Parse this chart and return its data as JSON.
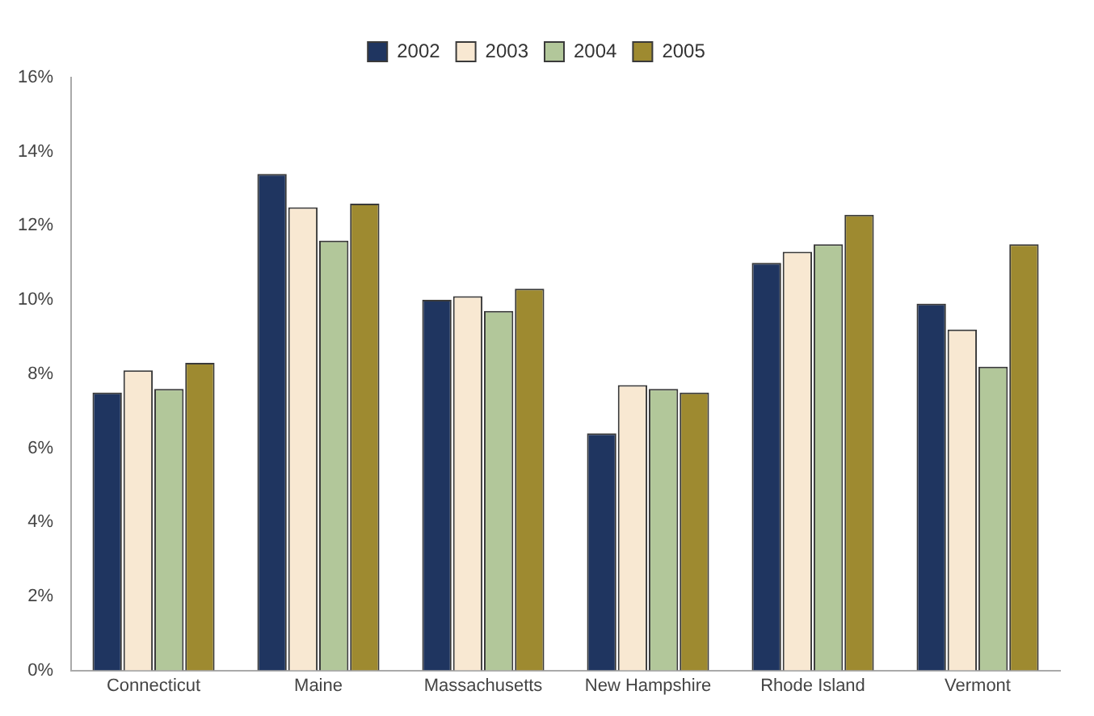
{
  "chart_data": {
    "type": "bar",
    "categories": [
      "Connecticut",
      "Maine",
      "Massachusetts",
      "New Hampshire",
      "Rhode Island",
      "Vermont"
    ],
    "series": [
      {
        "name": "2002",
        "color": "#1f3560",
        "values": [
          7.5,
          13.4,
          10.0,
          6.4,
          11.0,
          9.9
        ]
      },
      {
        "name": "2003",
        "color": "#f8e8d2",
        "values": [
          8.1,
          12.5,
          10.1,
          7.7,
          11.3,
          9.2
        ]
      },
      {
        "name": "2004",
        "color": "#b2c79a",
        "values": [
          7.6,
          11.6,
          9.7,
          7.6,
          11.5,
          8.2
        ]
      },
      {
        "name": "2005",
        "color": "#9e8a30",
        "values": [
          8.3,
          12.6,
          10.3,
          7.5,
          12.3,
          11.5
        ]
      }
    ],
    "ylim": [
      0,
      16
    ],
    "yticks": [
      {
        "value": 0,
        "label": "0%"
      },
      {
        "value": 2,
        "label": "2%"
      },
      {
        "value": 4,
        "label": "4%"
      },
      {
        "value": 6,
        "label": "6%"
      },
      {
        "value": 8,
        "label": "8%"
      },
      {
        "value": 10,
        "label": "10%"
      },
      {
        "value": 12,
        "label": "12%"
      },
      {
        "value": 14,
        "label": "14%"
      },
      {
        "value": 16,
        "label": "16%"
      }
    ],
    "grid": false,
    "legend": "top"
  }
}
